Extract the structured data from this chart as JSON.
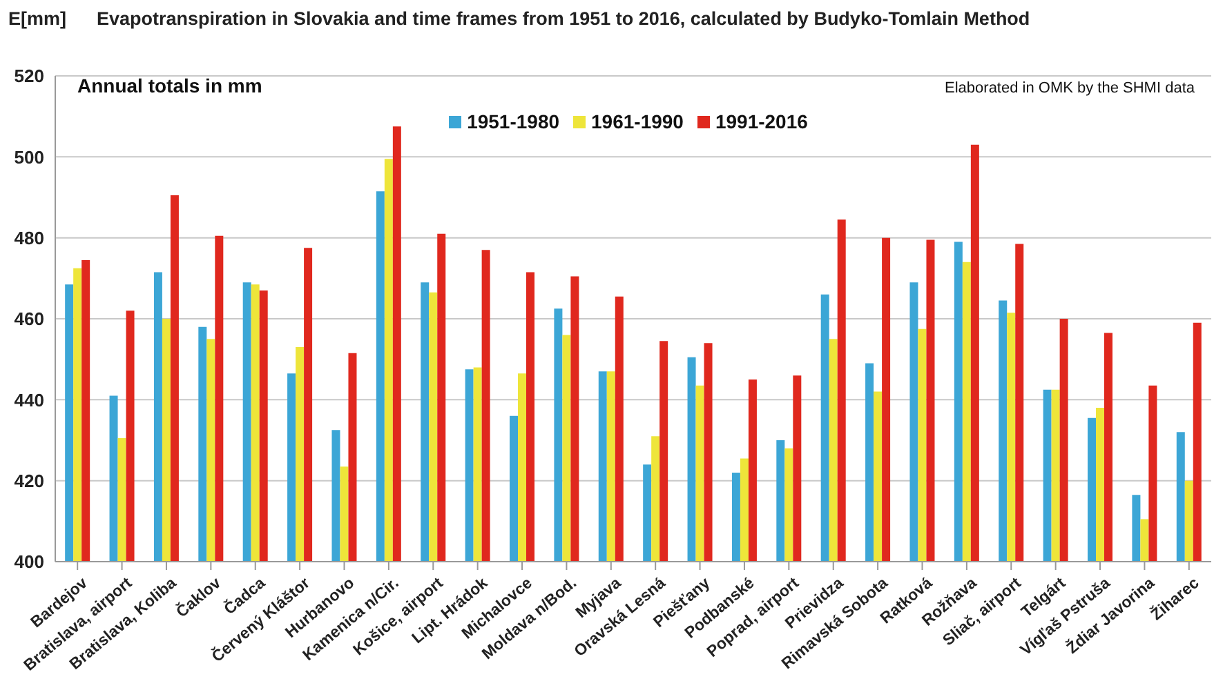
{
  "chart_data": {
    "type": "bar",
    "title": "Evapotranspiration in Slovakia and time frames from 1951 to 2016, calculated by Budyko-Tomlain Method",
    "ylabel": "E[mm]",
    "annotations": [
      "Annual totals in mm",
      "Elaborated in OMK by the SHMI data"
    ],
    "categories": [
      "Bardejov",
      "Bratislava, airport",
      "Bratislava, Koliba",
      "Čaklov",
      "Čadca",
      "Červený Kláštor",
      "Hurbanovo",
      "Kamenica n/Cir.",
      "Košice, airport",
      "Lipt. Hrádok",
      "Michalovce",
      "Moldava n/Bod.",
      "Myjava",
      "Oravská Lesná",
      "Piešťany",
      "Podbanské",
      "Poprad, airport",
      "Prievidza",
      "Rimavská Sobota",
      "Ratková",
      "Rožňava",
      "Sliač, airport",
      "Telgárt",
      "Vígľaš Pstruša",
      "Ždiar Javorina",
      "Žiharec"
    ],
    "series": [
      {
        "name": "1951-1980",
        "color": "#3ca6d6",
        "values": [
          468.5,
          441,
          471.5,
          458,
          469,
          446.5,
          432.5,
          491.5,
          469,
          447.5,
          436,
          462.5,
          447,
          424,
          450.5,
          422,
          430,
          466,
          449,
          469,
          479,
          464.5,
          442.5,
          435.5,
          416.5,
          432
        ]
      },
      {
        "name": "1961-1990",
        "color": "#eee53a",
        "values": [
          472.5,
          430.5,
          460,
          455,
          468.5,
          453,
          423.5,
          499.5,
          466.5,
          448,
          446.5,
          456,
          447,
          431,
          443.5,
          425.5,
          428,
          455,
          442,
          457.5,
          474,
          461.5,
          442.5,
          438,
          410.5,
          420
        ]
      },
      {
        "name": "1991-2016",
        "color": "#e0281e",
        "values": [
          474.5,
          462,
          490.5,
          480.5,
          467,
          477.5,
          451.5,
          507.5,
          481,
          477,
          471.5,
          470.5,
          465.5,
          454.5,
          454,
          445,
          446,
          484.5,
          480,
          479.5,
          503,
          478.5,
          460,
          456.5,
          443.5,
          459
        ]
      }
    ],
    "ylim": [
      400,
      520
    ],
    "yticks": [
      400,
      420,
      440,
      460,
      480,
      500,
      520
    ],
    "grid": "y",
    "legend": "top"
  }
}
